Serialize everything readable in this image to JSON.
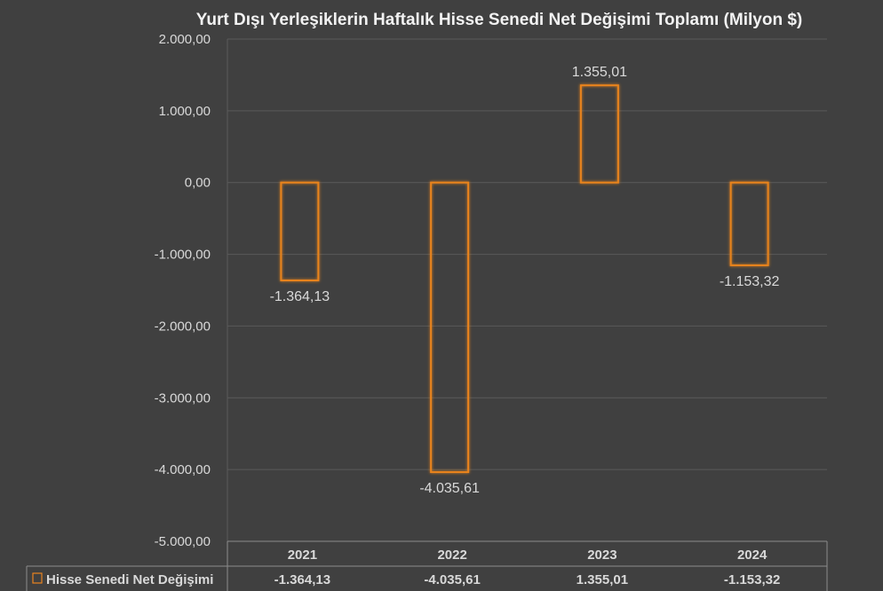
{
  "colors": {
    "background": "#404040",
    "gridline": "#5a5a5a",
    "bar_outline": "#e8831f",
    "text": "#d9d9d9",
    "title": "#f2f2f2",
    "table_line": "#8c8c8c"
  },
  "chart_data": {
    "type": "bar",
    "title": "Yurt Dışı Yerleşiklerin Haftalık Hisse Senedi Net Değişimi Toplamı (Milyon $)",
    "categories": [
      "2021",
      "2022",
      "2023",
      "2024"
    ],
    "series": [
      {
        "name": "Hisse Senedi Net Değişimi",
        "values": [
          -1364.13,
          -4035.61,
          1355.01,
          -1153.32
        ],
        "value_labels": [
          "-1.364,13",
          "-4.035,61",
          "1.355,01",
          "-1.153,32"
        ],
        "style": "outline-only",
        "color": "#e8831f"
      }
    ],
    "ylim": [
      -5000,
      2000
    ],
    "yticks": [
      2000,
      1000,
      0,
      -1000,
      -2000,
      -3000,
      -4000,
      -5000
    ],
    "ytick_labels": [
      "2.000,00",
      "1.000,00",
      "0,00",
      "-1.000,00",
      "-2.000,00",
      "-3.000,00",
      "-4.000,00",
      "-5.000,00"
    ],
    "grid": true,
    "legend": "data-table-below",
    "data_table": true
  }
}
